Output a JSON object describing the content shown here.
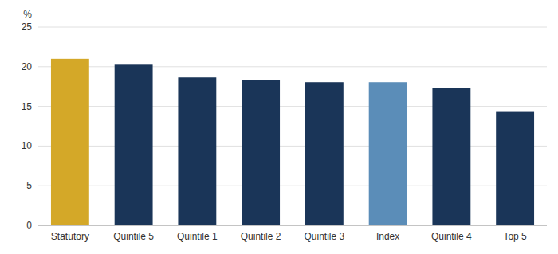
{
  "chart_data": {
    "type": "bar",
    "ylabel": "%",
    "categories": [
      "Statutory",
      "Quintile 5",
      "Quintile 1",
      "Quintile 2",
      "Quintile 3",
      "Index",
      "Quintile 4",
      "Top 5"
    ],
    "values": [
      21.0,
      20.25,
      18.65,
      18.35,
      18.05,
      18.05,
      17.35,
      14.3
    ],
    "colors": [
      "#D4A828",
      "#1A3558",
      "#1A3558",
      "#1A3558",
      "#1A3558",
      "#5B8DB8",
      "#1A3558",
      "#1A3558"
    ],
    "ylim": [
      0,
      25
    ],
    "yticks": [
      0,
      5,
      10,
      15,
      20,
      25
    ],
    "grid": true
  }
}
